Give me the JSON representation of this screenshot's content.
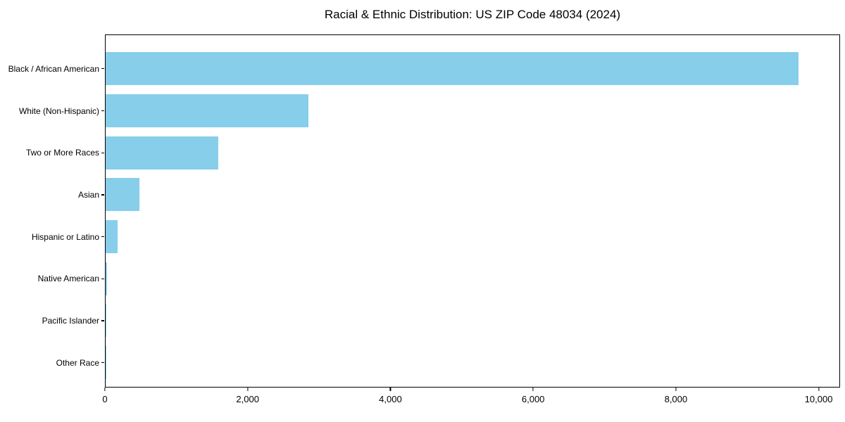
{
  "chart_data": {
    "type": "bar",
    "orientation": "horizontal",
    "title": "Racial & Ethnic Distribution: US ZIP Code 48034 (2024)",
    "categories": [
      "Black / African American",
      "White (Non-Hispanic)",
      "Two or More Races",
      "Asian",
      "Hispanic or Latino",
      "Native American",
      "Pacific Islander",
      "Other Race"
    ],
    "values": [
      9730,
      2850,
      1580,
      470,
      170,
      15,
      5,
      5
    ],
    "bar_color": "#87CEEB",
    "xlim": [
      0,
      10300
    ],
    "xticks": [
      0,
      2000,
      4000,
      6000,
      8000,
      10000
    ],
    "xtick_labels": [
      "0",
      "2,000",
      "4,000",
      "6,000",
      "8,000",
      "10,000"
    ],
    "xlabel": "",
    "ylabel": "",
    "grid": false,
    "legend": null,
    "background": "#ffffff",
    "text_color": "#000000"
  }
}
